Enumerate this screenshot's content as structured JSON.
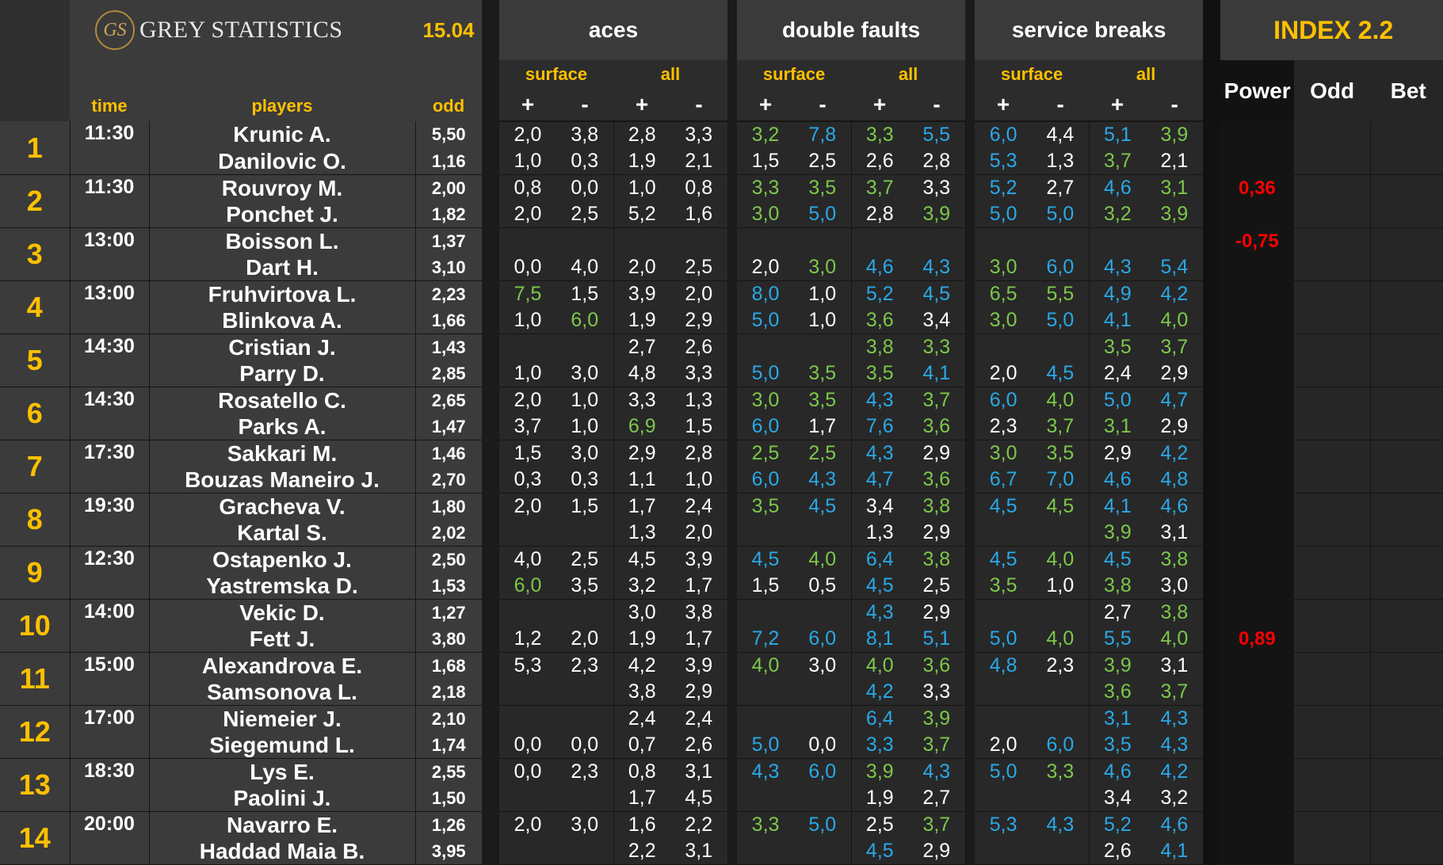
{
  "header": {
    "logo_mark": "GS",
    "logo_text": "GREY STATISTICS",
    "date": "15.04",
    "groups": {
      "aces": "aces",
      "double_faults": "double faults",
      "service_breaks": "service breaks"
    },
    "index_title": "INDEX 2.2",
    "surface": "surface",
    "all": "all",
    "plus": "+",
    "minus": "-",
    "col_time": "time",
    "col_players": "players",
    "col_odd": "odd",
    "col_power": "Power",
    "col_odd2": "Odd",
    "col_bet": "Bet"
  },
  "matches": [
    {
      "num": "1",
      "time": "11:30",
      "power": "",
      "p": [
        {
          "name": "Krunic A.",
          "odd": "5,50",
          "v": [
            "2,0",
            "3,8",
            "2,8",
            "3,3",
            "3,2",
            "7,8",
            "3,3",
            "5,5",
            "6,0",
            "4,4",
            "5,1",
            "3,9"
          ],
          "c": "wwwwgbgbbwbg"
        },
        {
          "name": "Danilovic O.",
          "odd": "1,16",
          "v": [
            "1,0",
            "0,3",
            "1,9",
            "2,1",
            "1,5",
            "2,5",
            "2,6",
            "2,8",
            "5,3",
            "1,3",
            "3,7",
            "2,1"
          ],
          "c": "wwwwwwwwbwgw"
        }
      ]
    },
    {
      "num": "2",
      "time": "11:30",
      "power": "0,36",
      "p": [
        {
          "name": "Rouvroy M.",
          "odd": "2,00",
          "v": [
            "0,8",
            "0,0",
            "1,0",
            "0,8",
            "3,3",
            "3,5",
            "3,7",
            "3,3",
            "5,2",
            "2,7",
            "4,6",
            "3,1"
          ],
          "c": "wwwwgggwbwbg"
        },
        {
          "name": "Ponchet J.",
          "odd": "1,82",
          "v": [
            "2,0",
            "2,5",
            "5,2",
            "1,6",
            "3,0",
            "5,0",
            "2,8",
            "3,9",
            "5,0",
            "5,0",
            "3,2",
            "3,9"
          ],
          "c": "wwwwgbwgbbgg"
        }
      ]
    },
    {
      "num": "3",
      "time": "13:00",
      "power": "-0,75",
      "p": [
        {
          "name": "Boisson L.",
          "odd": "1,37",
          "v": [
            "",
            "",
            "",
            "",
            "",
            "",
            "",
            "",
            "",
            "",
            "",
            ""
          ],
          "c": "wwwwwwwwwwww"
        },
        {
          "name": "Dart H.",
          "odd": "3,10",
          "v": [
            "0,0",
            "4,0",
            "2,0",
            "2,5",
            "2,0",
            "3,0",
            "4,6",
            "4,3",
            "3,0",
            "6,0",
            "4,3",
            "5,4"
          ],
          "c": "wwwwwgbbgbbb"
        }
      ]
    },
    {
      "num": "4",
      "time": "13:00",
      "power": "",
      "p": [
        {
          "name": "Fruhvirtova L.",
          "odd": "2,23",
          "v": [
            "7,5",
            "1,5",
            "3,9",
            "2,0",
            "8,0",
            "1,0",
            "5,2",
            "4,5",
            "6,5",
            "5,5",
            "4,9",
            "4,2"
          ],
          "c": "gwwwbwbbggbb"
        },
        {
          "name": "Blinkova A.",
          "odd": "1,66",
          "v": [
            "1,0",
            "6,0",
            "1,9",
            "2,9",
            "5,0",
            "1,0",
            "3,6",
            "3,4",
            "3,0",
            "5,0",
            "4,1",
            "4,0"
          ],
          "c": "wgwwbwgwgbbg"
        }
      ]
    },
    {
      "num": "5",
      "time": "14:30",
      "power": "",
      "p": [
        {
          "name": "Cristian J.",
          "odd": "1,43",
          "v": [
            "",
            "",
            "2,7",
            "2,6",
            "",
            "",
            "3,8",
            "3,3",
            "",
            "",
            "3,5",
            "3,7"
          ],
          "c": "wwwwwwggwwgg"
        },
        {
          "name": "Parry D.",
          "odd": "2,85",
          "v": [
            "1,0",
            "3,0",
            "4,8",
            "3,3",
            "5,0",
            "3,5",
            "3,5",
            "4,1",
            "2,0",
            "4,5",
            "2,4",
            "2,9"
          ],
          "c": "wwwwbggbwbww"
        }
      ]
    },
    {
      "num": "6",
      "time": "14:30",
      "power": "",
      "p": [
        {
          "name": "Rosatello C.",
          "odd": "2,65",
          "v": [
            "2,0",
            "1,0",
            "3,3",
            "1,3",
            "3,0",
            "3,5",
            "4,3",
            "3,7",
            "6,0",
            "4,0",
            "5,0",
            "4,7"
          ],
          "c": "wwwwggbgbgbb"
        },
        {
          "name": "Parks A.",
          "odd": "1,47",
          "v": [
            "3,7",
            "1,0",
            "6,9",
            "1,5",
            "6,0",
            "1,7",
            "7,6",
            "3,6",
            "2,3",
            "3,7",
            "3,1",
            "2,9"
          ],
          "c": "wwgwbwbgwggw"
        }
      ]
    },
    {
      "num": "7",
      "time": "17:30",
      "power": "",
      "p": [
        {
          "name": "Sakkari M.",
          "odd": "1,46",
          "v": [
            "1,5",
            "3,0",
            "2,9",
            "2,8",
            "2,5",
            "2,5",
            "4,3",
            "2,9",
            "3,0",
            "3,5",
            "2,9",
            "4,2"
          ],
          "c": "wwwwggbwggwb"
        },
        {
          "name": "Bouzas Maneiro J.",
          "odd": "2,70",
          "v": [
            "0,3",
            "0,3",
            "1,1",
            "1,0",
            "6,0",
            "4,3",
            "4,7",
            "3,6",
            "6,7",
            "7,0",
            "4,6",
            "4,8"
          ],
          "c": "wwwwbbbgbbbb"
        }
      ]
    },
    {
      "num": "8",
      "time": "19:30",
      "power": "",
      "p": [
        {
          "name": "Gracheva V.",
          "odd": "1,80",
          "v": [
            "2,0",
            "1,5",
            "1,7",
            "2,4",
            "3,5",
            "4,5",
            "3,4",
            "3,8",
            "4,5",
            "4,5",
            "4,1",
            "4,6"
          ],
          "c": "wwwwgbwgbgbb"
        },
        {
          "name": "Kartal S.",
          "odd": "2,02",
          "v": [
            "",
            "",
            "1,3",
            "2,0",
            "",
            "",
            "1,3",
            "2,9",
            "",
            "",
            "3,9",
            "3,1"
          ],
          "c": "wwwwwwwwwwgw"
        }
      ]
    },
    {
      "num": "9",
      "time": "12:30",
      "power": "",
      "p": [
        {
          "name": "Ostapenko J.",
          "odd": "2,50",
          "v": [
            "4,0",
            "2,5",
            "4,5",
            "3,9",
            "4,5",
            "4,0",
            "6,4",
            "3,8",
            "4,5",
            "4,0",
            "4,5",
            "3,8"
          ],
          "c": "wwwwbgbgbgbg"
        },
        {
          "name": "Yastremska D.",
          "odd": "1,53",
          "v": [
            "6,0",
            "3,5",
            "3,2",
            "1,7",
            "1,5",
            "0,5",
            "4,5",
            "2,5",
            "3,5",
            "1,0",
            "3,8",
            "3,0"
          ],
          "c": "gwwwwwbwgwgw"
        }
      ]
    },
    {
      "num": "10",
      "time": "14:00",
      "power": "0,89",
      "p": [
        {
          "name": "Vekic D.",
          "odd": "1,27",
          "v": [
            "",
            "",
            "3,0",
            "3,8",
            "",
            "",
            "4,3",
            "2,9",
            "",
            "",
            "2,7",
            "3,8"
          ],
          "c": "wwwwwwbwwwwg"
        },
        {
          "name": "Fett J.",
          "odd": "3,80",
          "v": [
            "1,2",
            "2,0",
            "1,9",
            "1,7",
            "7,2",
            "6,0",
            "8,1",
            "5,1",
            "5,0",
            "4,0",
            "5,5",
            "4,0"
          ],
          "c": "wwwwbbbbbgbg"
        }
      ]
    },
    {
      "num": "11",
      "time": "15:00",
      "power": "",
      "p": [
        {
          "name": "Alexandrova E.",
          "odd": "1,68",
          "v": [
            "5,3",
            "2,3",
            "4,2",
            "3,9",
            "4,0",
            "3,0",
            "4,0",
            "3,6",
            "4,8",
            "2,3",
            "3,9",
            "3,1"
          ],
          "c": "wwwwgwggbwgw"
        },
        {
          "name": "Samsonova L.",
          "odd": "2,18",
          "v": [
            "",
            "",
            "3,8",
            "2,9",
            "",
            "",
            "4,2",
            "3,3",
            "",
            "",
            "3,6",
            "3,7"
          ],
          "c": "wwwwwwbwwwgg"
        }
      ]
    },
    {
      "num": "12",
      "time": "17:00",
      "power": "",
      "p": [
        {
          "name": "Niemeier J.",
          "odd": "2,10",
          "v": [
            "",
            "",
            "2,4",
            "2,4",
            "",
            "",
            "6,4",
            "3,9",
            "",
            "",
            "3,1",
            "4,3"
          ],
          "c": "wwwwwwbgwwbb"
        },
        {
          "name": "Siegemund L.",
          "odd": "1,74",
          "v": [
            "0,0",
            "0,0",
            "0,7",
            "2,6",
            "5,0",
            "0,0",
            "3,3",
            "3,7",
            "2,0",
            "6,0",
            "3,5",
            "4,3"
          ],
          "c": "wwwwbwbgwbbb"
        }
      ]
    },
    {
      "num": "13",
      "time": "18:30",
      "power": "",
      "p": [
        {
          "name": "Lys E.",
          "odd": "2,55",
          "v": [
            "0,0",
            "2,3",
            "0,8",
            "3,1",
            "4,3",
            "6,0",
            "3,9",
            "4,3",
            "5,0",
            "3,3",
            "4,6",
            "4,2"
          ],
          "c": "wwwwbbgbbgbb"
        },
        {
          "name": "Paolini J.",
          "odd": "1,50",
          "v": [
            "",
            "",
            "1,7",
            "4,5",
            "",
            "",
            "1,9",
            "2,7",
            "",
            "",
            "3,4",
            "3,2"
          ],
          "c": "wwwwwwwwwwww"
        }
      ]
    },
    {
      "num": "14",
      "time": "20:00",
      "power": "",
      "p": [
        {
          "name": "Navarro E.",
          "odd": "1,26",
          "v": [
            "2,0",
            "3,0",
            "1,6",
            "2,2",
            "3,3",
            "5,0",
            "2,5",
            "3,7",
            "5,3",
            "4,3",
            "5,2",
            "4,6"
          ],
          "c": "wwwwgbwgbbbb"
        },
        {
          "name": "Haddad Maia B.",
          "odd": "3,95",
          "v": [
            "",
            "",
            "2,2",
            "3,1",
            "",
            "",
            "4,5",
            "2,9",
            "",
            "",
            "2,6",
            "4,1"
          ],
          "c": "wwwwwwbwwwwb"
        }
      ]
    }
  ]
}
